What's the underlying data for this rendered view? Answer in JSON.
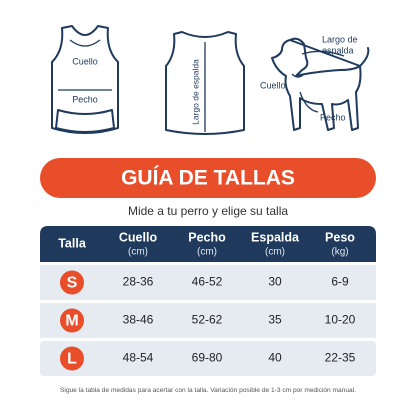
{
  "illustrations": {
    "shirt_front": {
      "labels": [
        "Cuello",
        "Pecho"
      ]
    },
    "shirt_back": {
      "label": "Largo de espalda"
    },
    "dog": {
      "label_lines": [
        "Largo de",
        "espalda"
      ],
      "labels": [
        "Cuello",
        "Pecho"
      ]
    }
  },
  "title": "GUÍA DE TALLAS",
  "subtitle": "Mide a tu perro y elige su talla",
  "table": {
    "header": [
      {
        "name": "Talla"
      },
      {
        "name": "Cuello",
        "unit": "(cm)"
      },
      {
        "name": "Pecho",
        "unit": "(cm)"
      },
      {
        "name": "Espalda",
        "unit": "(cm)"
      },
      {
        "name": "Peso",
        "unit": "(kg)"
      }
    ],
    "rows": [
      [
        "S",
        "28-36",
        "46-52",
        "30",
        "6-9"
      ],
      [
        "M",
        "38-46",
        "52-62",
        "35",
        "10-20"
      ],
      [
        "L",
        "48-54",
        "69-80",
        "40",
        "22-35"
      ]
    ]
  },
  "footnote": "Sigue la tabla de medidas para acertar con la talla. Variación posible de 1-3 cm por medición manual."
}
